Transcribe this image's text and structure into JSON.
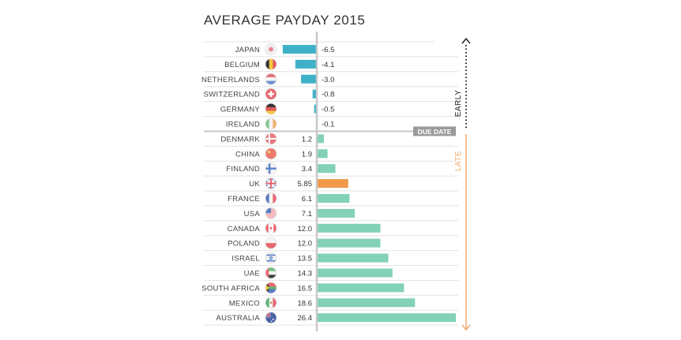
{
  "chart_data": {
    "type": "bar",
    "title": "AVERAGE PAYDAY 2015",
    "orientation": "horizontal",
    "categories": [
      "JAPAN",
      "BELGIUM",
      "NETHERLANDS",
      "SWITZERLAND",
      "GERMANY",
      "IRELAND",
      "DENMARK",
      "CHINA",
      "FINLAND",
      "UK",
      "FRANCE",
      "USA",
      "CANADA",
      "POLAND",
      "ISRAEL",
      "UAE",
      "SOUTH AFRICA",
      "MEXICO",
      "AUSTRALIA"
    ],
    "values": [
      -6.5,
      -4.1,
      -3.0,
      -0.8,
      -0.5,
      -0.1,
      1.2,
      1.9,
      3.4,
      5.85,
      6.1,
      7.1,
      12.0,
      12.0,
      13.5,
      14.3,
      16.5,
      18.6,
      26.4
    ],
    "value_labels": [
      "-6.5",
      "-4.1",
      "-3.0",
      "-0.8",
      "-0.5",
      "-0.1",
      "1.2",
      "1.9",
      "3.4",
      "5.85",
      "6.1",
      "7.1",
      "12.0",
      "12.0",
      "13.5",
      "14.3",
      "16.5",
      "18.6",
      "26.4"
    ],
    "xlim": [
      -6.5,
      26.4
    ],
    "grid": false,
    "highlight_category": "UK",
    "early_label": "EARLY",
    "late_label": "LATE",
    "due_date_label": "DUE DATE",
    "colors": {
      "early": "#3eb1c8",
      "late": "#82d1b8",
      "highlight": "#f0994a",
      "late_arrow": "#f0aa6a",
      "early_arrow": "#222222",
      "due_line": "#c8c8c8",
      "due_badge": "#9a9a9a"
    }
  },
  "flags": [
    {
      "country": "JAPAN",
      "icon": "japan-flag-icon",
      "colors": [
        "#f2f2f2",
        "#e8868e"
      ]
    },
    {
      "country": "BELGIUM",
      "icon": "belgium-flag-icon",
      "colors": [
        "#333333",
        "#f4c842",
        "#e05a5a"
      ]
    },
    {
      "country": "NETHERLANDS",
      "icon": "netherlands-flag-icon",
      "colors": [
        "#e4727a",
        "#f4f4f4",
        "#6c8fd0"
      ]
    },
    {
      "country": "SWITZERLAND",
      "icon": "switzerland-flag-icon",
      "colors": [
        "#e8686e",
        "#ffffff"
      ]
    },
    {
      "country": "GERMANY",
      "icon": "germany-flag-icon",
      "colors": [
        "#333333",
        "#e05a5a",
        "#f4c842"
      ]
    },
    {
      "country": "IRELAND",
      "icon": "ireland-flag-icon",
      "colors": [
        "#86c98e",
        "#f4f4f4",
        "#f3b06a"
      ]
    },
    {
      "country": "DENMARK",
      "icon": "denmark-flag-icon",
      "colors": [
        "#e8747a",
        "#ffffff"
      ]
    },
    {
      "country": "CHINA",
      "icon": "china-flag-icon",
      "colors": [
        "#ec7a6e",
        "#f8d86a"
      ]
    },
    {
      "country": "FINLAND",
      "icon": "finland-flag-icon",
      "colors": [
        "#f4f4f4",
        "#5b82c8"
      ]
    },
    {
      "country": "UK",
      "icon": "uk-flag-icon",
      "colors": [
        "#5b7cc0",
        "#ffffff",
        "#e05a66"
      ]
    },
    {
      "country": "FRANCE",
      "icon": "france-flag-icon",
      "colors": [
        "#5b7cc0",
        "#f4f4f4",
        "#e86870"
      ]
    },
    {
      "country": "USA",
      "icon": "usa-flag-icon",
      "colors": [
        "#e86870",
        "#ffffff",
        "#5b7cc0"
      ]
    },
    {
      "country": "CANADA",
      "icon": "canada-flag-icon",
      "colors": [
        "#e86870",
        "#ffffff"
      ]
    },
    {
      "country": "POLAND",
      "icon": "poland-flag-icon",
      "colors": [
        "#f4f4f4",
        "#e86870"
      ]
    },
    {
      "country": "ISRAEL",
      "icon": "israel-flag-icon",
      "colors": [
        "#f4f4f4",
        "#5b82c8"
      ]
    },
    {
      "country": "UAE",
      "icon": "uae-flag-icon",
      "colors": [
        "#6cbf78",
        "#f4f4f4",
        "#444444",
        "#e86870"
      ]
    },
    {
      "country": "SOUTH AFRICA",
      "icon": "south-africa-flag-icon",
      "colors": [
        "#e86870",
        "#5b7cc0",
        "#5fb870",
        "#f4c842",
        "#333333"
      ]
    },
    {
      "country": "MEXICO",
      "icon": "mexico-flag-icon",
      "colors": [
        "#5fb870",
        "#f4f4f4",
        "#e86870"
      ]
    },
    {
      "country": "AUSTRALIA",
      "icon": "australia-flag-icon",
      "colors": [
        "#4a63a8",
        "#ffffff",
        "#e86870"
      ]
    }
  ]
}
